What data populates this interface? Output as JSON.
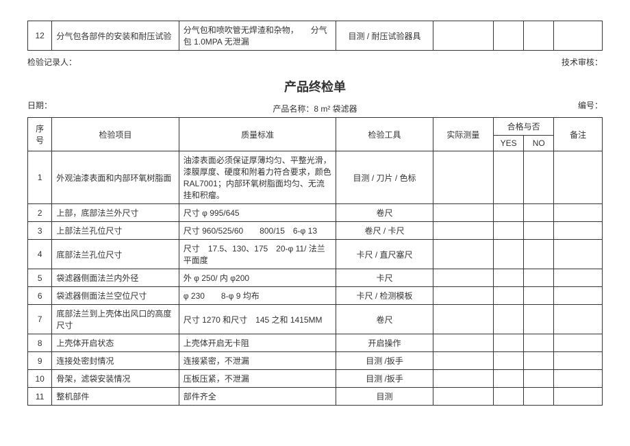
{
  "top_table": {
    "no": "12",
    "item": "分气包各部件的安装和耐压试验",
    "standard": "分气包和喷吹管无焊渣和杂物，　　分气包 1.0MPA 无泄漏",
    "tool": "目测 / 耐压试验器具"
  },
  "sig": {
    "left": "检验记录人：",
    "right": "技术审核："
  },
  "title": "产品终检单",
  "meta": {
    "date_label": "日期：",
    "product": "产品名称：8 m² 袋滤器",
    "code_label": "编号："
  },
  "headers": {
    "no": "序号",
    "item": "检验项目",
    "standard": "质量标准",
    "tool": "检验工具",
    "actual": "实际测量",
    "pass": "合格与否",
    "yes": "YES",
    "no_col": "NO",
    "remark": "备注"
  },
  "rows": [
    {
      "no": "1",
      "item": "外观油漆表面和内部环氧树脂面",
      "standard": "油漆表面必须保证厚薄均匀、平整光滑，漆膜厚度、硬度和附着力符合要求，颜色 RAL7001；内部环氧树脂面均匀、无流挂和积瘤。",
      "tool": "目测 / 刀片 / 色标"
    },
    {
      "no": "2",
      "item": "上部，底部法兰外尺寸",
      "standard": "尺寸 φ 995/645",
      "tool": "卷尺"
    },
    {
      "no": "3",
      "item": "上部法兰孔位尺寸",
      "standard": "尺寸 960/525/60　　800/15　6-φ 13",
      "tool": "卷尺 / 卡尺"
    },
    {
      "no": "4",
      "item": "底部法兰孔位尺寸",
      "standard": "尺寸　17.5、130、175　20-φ 11/ 法兰平面度",
      "tool": "卡尺 / 直尺塞尺"
    },
    {
      "no": "5",
      "item": "袋滤器侧面法兰内外径",
      "standard": "外 φ 250/ 内 φ200",
      "tool": "卡尺"
    },
    {
      "no": "6",
      "item": "袋滤器侧面法兰空位尺寸",
      "standard": "φ 230　　8-φ 9 均布",
      "tool": "卡尺 / 检测模板"
    },
    {
      "no": "7",
      "item": "底部法兰到上壳体出风口的高度尺寸",
      "standard": "尺寸 1270 和尺寸　145 之和 1415MM",
      "tool": "卷尺"
    },
    {
      "no": "8",
      "item": "上壳体开启状态",
      "standard": "上壳体开启无卡阻",
      "tool": "开启操作"
    },
    {
      "no": "9",
      "item": "连接处密封情况",
      "standard": "连接紧密，不泄漏",
      "tool": "目测 /扳手"
    },
    {
      "no": "10",
      "item": "骨架，滤袋安装情况",
      "standard": "压板压紧，不泄漏",
      "tool": "目测 /扳手"
    },
    {
      "no": "11",
      "item": "整机部件",
      "standard": "部件齐全",
      "tool": "目测"
    }
  ]
}
